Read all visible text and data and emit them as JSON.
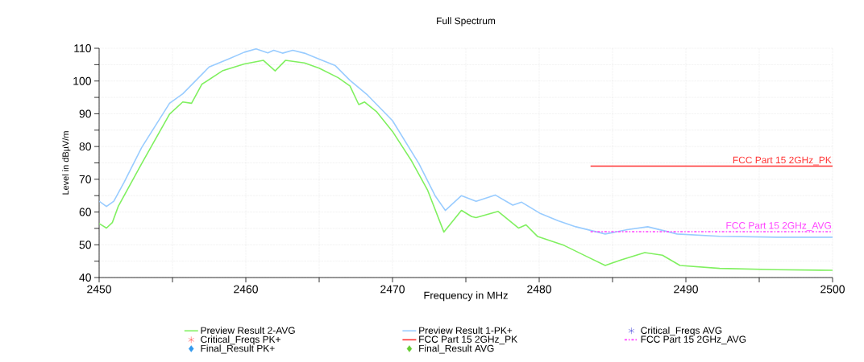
{
  "chart_data": {
    "type": "line",
    "title": "Full Spectrum",
    "xlabel": "Frequency in MHz",
    "ylabel": "Level in dBµV/m",
    "xlim": [
      2450,
      2500
    ],
    "ylim": [
      40,
      110
    ],
    "xticks": [
      2450,
      {
        "value": 2455,
        "label": null
      },
      2460,
      {
        "value": 2465,
        "label": null
      },
      2470,
      {
        "value": 2475,
        "label": null
      },
      2480,
      {
        "value": 2485,
        "label": null
      },
      2490,
      {
        "value": 2495,
        "label": null
      },
      2500
    ],
    "yticks": [
      40,
      {
        "value": 45,
        "label": null
      },
      50,
      {
        "value": 55,
        "label": null
      },
      60,
      {
        "value": 65,
        "label": null
      },
      70,
      {
        "value": 75,
        "label": null
      },
      80,
      {
        "value": 85,
        "label": null
      },
      90,
      {
        "value": 95,
        "label": null
      },
      100,
      {
        "value": 105,
        "label": null
      },
      110
    ],
    "grid": true,
    "legend": "bottom",
    "marker": "none",
    "line_style": "solid",
    "series": [
      {
        "name": "Preview Result 2-AVG",
        "color": "#80f060",
        "x": [
          2450.0,
          2450.5,
          2450.9,
          2451.3,
          2452.9,
          2454.8,
          2455.7,
          2456.3,
          2457.0,
          2458.4,
          2459.9,
          2461.2,
          2462.0,
          2462.7,
          2464.0,
          2465.0,
          2466.3,
          2467.1,
          2467.7,
          2468.1,
          2468.9,
          2470.0,
          2471.3,
          2472.4,
          2473.5,
          2474.7,
          2475.4,
          2475.7,
          2477.2,
          2478.6,
          2479.1,
          2479.9,
          2481.7,
          2483.3,
          2484.5,
          2485.6,
          2487.2,
          2488.4,
          2489.6,
          2492.3,
          2496.2,
          2500.0
        ],
        "values": [
          56.5,
          55.1,
          56.8,
          61.7,
          74.8,
          89.9,
          93.6,
          93.2,
          99.0,
          103.1,
          105.2,
          106.3,
          103.1,
          106.3,
          105.5,
          103.9,
          101.0,
          98.5,
          92.8,
          93.6,
          90.7,
          84.6,
          75.6,
          66.6,
          53.9,
          60.5,
          58.6,
          58.3,
          60.2,
          55.1,
          56.1,
          52.5,
          49.8,
          46.3,
          43.7,
          45.4,
          47.6,
          46.8,
          43.7,
          42.8,
          42.4,
          42.2
        ]
      },
      {
        "name": "Preview Result 1-PK+",
        "color": "#99ccff",
        "x": [
          2450.0,
          2450.5,
          2451.0,
          2451.7,
          2452.9,
          2454.8,
          2455.7,
          2456.6,
          2457.5,
          2458.8,
          2459.9,
          2460.7,
          2461.5,
          2461.9,
          2462.5,
          2463.2,
          2464.0,
          2465.0,
          2466.1,
          2467.1,
          2468.3,
          2470.0,
          2471.8,
          2472.9,
          2473.6,
          2474.7,
          2475.7,
          2477.0,
          2478.2,
          2478.8,
          2480.1,
          2481.3,
          2482.5,
          2484.5,
          2486.0,
          2487.4,
          2489.4,
          2492.3,
          2496.2,
          2500.0
        ],
        "values": [
          63.3,
          61.7,
          63.3,
          69.1,
          79.7,
          93.2,
          96.1,
          100.2,
          104.3,
          106.7,
          108.8,
          109.8,
          108.6,
          109.4,
          108.5,
          109.4,
          108.5,
          106.7,
          104.7,
          100.2,
          95.7,
          87.9,
          74.8,
          65.0,
          60.5,
          65.0,
          63.3,
          65.2,
          62.1,
          63.0,
          59.5,
          57.3,
          55.5,
          53.3,
          54.6,
          55.5,
          53.3,
          52.6,
          52.3,
          52.3
        ]
      },
      {
        "name": "Critical_Freqs AVG",
        "color": "#0000cc",
        "type": "scatter",
        "marker": "star"
      },
      {
        "name": "Critical_Freqs PK+",
        "color": "#ff0000",
        "type": "scatter",
        "marker": "star"
      },
      {
        "name": "FCC Part 15 2GHz_PK",
        "color": "#ff3333",
        "x": [
          2483.5,
          2500
        ],
        "values": [
          74,
          74
        ]
      },
      {
        "name": "FCC Part 15 2GHz_AVG",
        "color": "#ff44ff",
        "line_style": "dashed",
        "x": [
          2483.5,
          2500
        ],
        "values": [
          54,
          54
        ]
      },
      {
        "name": "Final_Result PK+",
        "color": "#3399ee",
        "type": "scatter",
        "marker": "diamond"
      },
      {
        "name": "Final_Result AVG",
        "color": "#66cc33",
        "type": "scatter",
        "marker": "diamond"
      }
    ]
  }
}
